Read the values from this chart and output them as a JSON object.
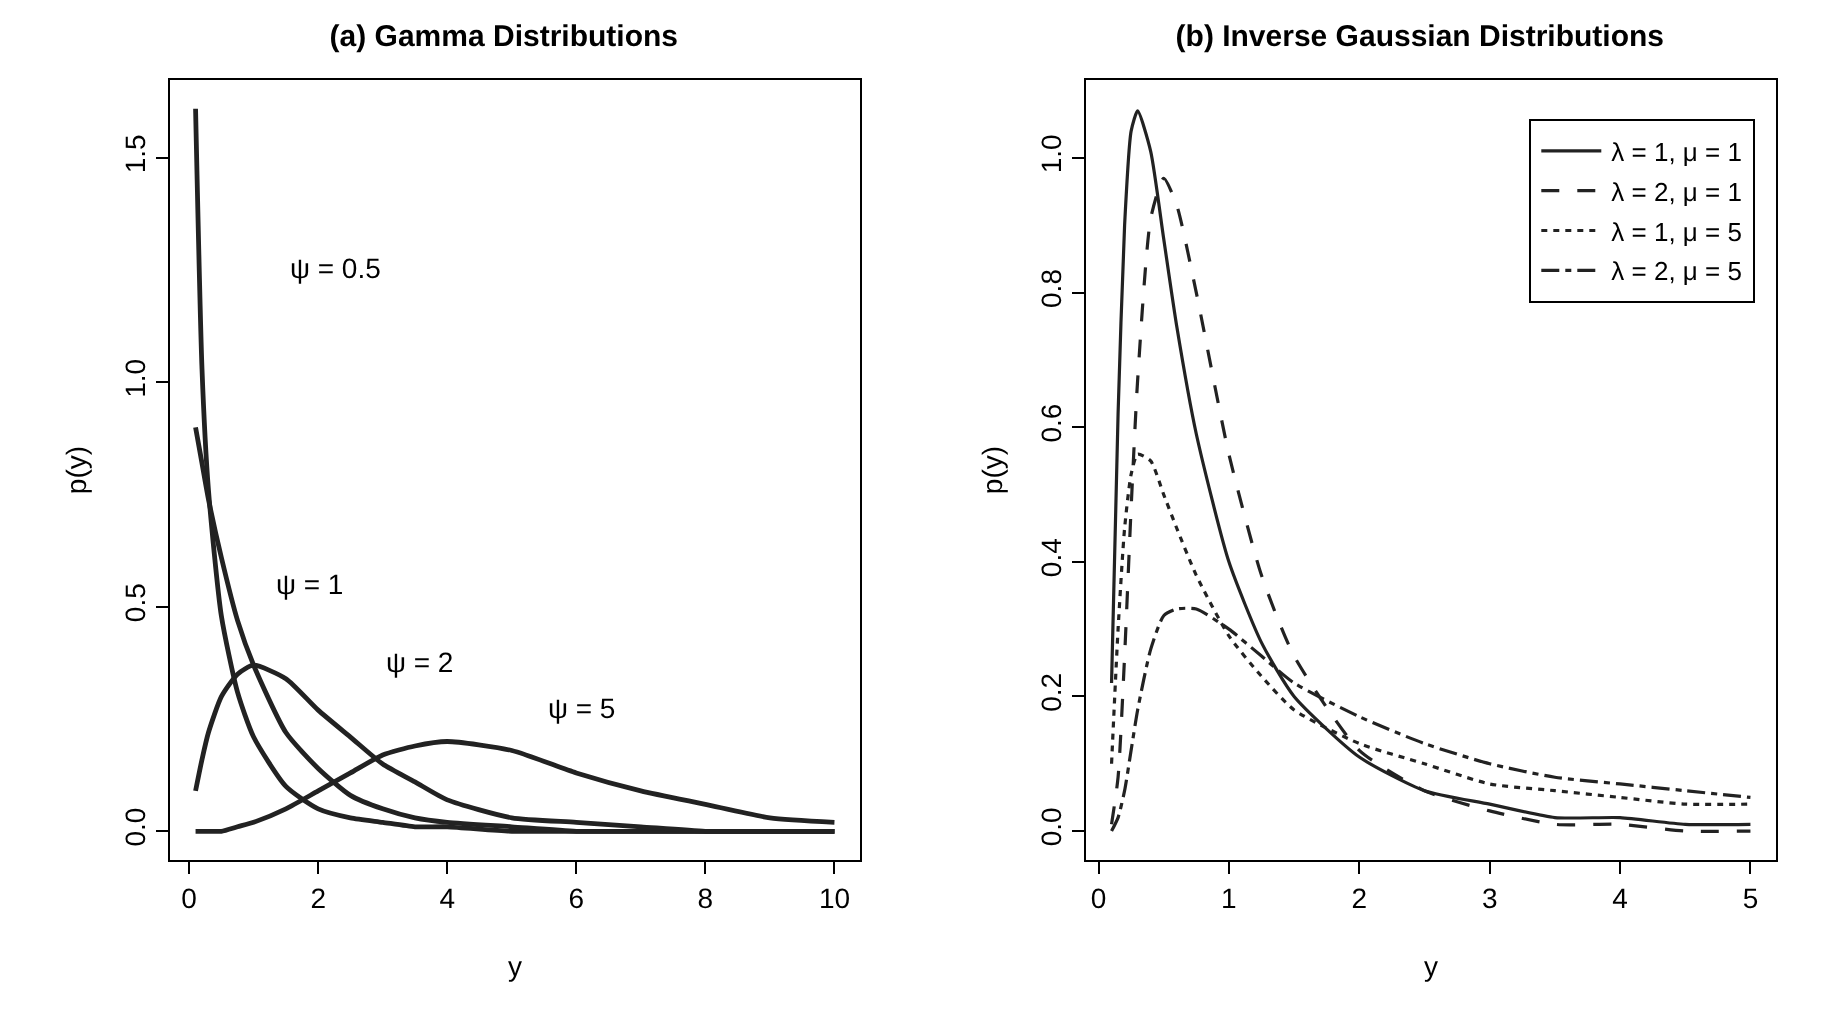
{
  "chart_data": [
    {
      "type": "line",
      "title": "(a) Gamma Distributions",
      "xlabel": "y",
      "ylabel": "p(y)",
      "x": [
        0.1,
        0.2,
        0.3,
        0.5,
        0.75,
        1,
        1.5,
        2,
        2.5,
        3,
        3.5,
        4,
        5,
        6,
        7,
        8,
        9,
        10
      ],
      "series": [
        {
          "color": "#222222",
          "values": [
            1.61,
            1.03,
            0.76,
            0.48,
            0.31,
            0.21,
            0.1,
            0.05,
            0.03,
            0.02,
            0.01,
            0.01,
            0,
            0,
            0,
            0,
            0,
            0
          ]
        },
        {
          "color": "#222222",
          "values": [
            0.9,
            0.82,
            0.74,
            0.61,
            0.47,
            0.37,
            0.22,
            0.14,
            0.08,
            0.05,
            0.03,
            0.02,
            0.01,
            0,
            0,
            0,
            0,
            0
          ]
        },
        {
          "color": "#222222",
          "values": [
            0.09,
            0.16,
            0.22,
            0.3,
            0.35,
            0.37,
            0.34,
            0.27,
            0.21,
            0.15,
            0.11,
            0.07,
            0.03,
            0.02,
            0.01,
            0,
            0,
            0
          ]
        },
        {
          "color": "#222222",
          "values": [
            0,
            0,
            0,
            0,
            0.01,
            0.02,
            0.05,
            0.09,
            0.13,
            0.17,
            0.19,
            0.2,
            0.18,
            0.13,
            0.09,
            0.06,
            0.03,
            0.02
          ]
        }
      ],
      "annotations": [
        "ψ = 0.5",
        "ψ = 1",
        "ψ = 2",
        "ψ = 5"
      ],
      "xlim": [
        -0.296,
        10.396
      ],
      "ylim": [
        -0.064,
        1.674
      ],
      "xticks": [
        0,
        2,
        4,
        6,
        8,
        10
      ],
      "yticks": [
        {
          "value": 0,
          "label": "0.0"
        },
        {
          "value": 0.5,
          "label": "0.5"
        },
        {
          "value": 1,
          "label": "1.0"
        },
        {
          "value": 1.5,
          "label": "1.5"
        }
      ],
      "grid": false,
      "legend": false,
      "line_style": "solid"
    },
    {
      "type": "line",
      "title": "(b) Inverse Gaussian Distributions",
      "xlabel": "y",
      "ylabel": "p(y)",
      "x": [
        0.1,
        0.15,
        0.2,
        0.25,
        0.3,
        0.4,
        0.5,
        0.6,
        0.75,
        1,
        1.25,
        1.5,
        2,
        2.5,
        3,
        3.5,
        4,
        4.5,
        5
      ],
      "series": [
        {
          "name": "λ = 1, μ = 1",
          "color": "#222222",
          "line_style": "solid",
          "values": [
            0.22,
            0.62,
            0.9,
            1.04,
            1.07,
            1.01,
            0.88,
            0.75,
            0.59,
            0.4,
            0.28,
            0.2,
            0.11,
            0.06,
            0.04,
            0.02,
            0.02,
            0.01,
            0.01
          ]
        },
        {
          "name": "λ = 2, μ = 1",
          "color": "#222222",
          "line_style": "dashed",
          "values": [
            0.01,
            0.08,
            0.26,
            0.48,
            0.67,
            0.91,
            0.97,
            0.93,
            0.8,
            0.56,
            0.38,
            0.26,
            0.12,
            0.06,
            0.03,
            0.01,
            0.01,
            0,
            0
          ]
        },
        {
          "name": "λ = 1, μ = 5",
          "color": "#222222",
          "line_style": "dotted",
          "values": [
            0.1,
            0.3,
            0.45,
            0.53,
            0.56,
            0.55,
            0.5,
            0.45,
            0.38,
            0.29,
            0.23,
            0.18,
            0.13,
            0.1,
            0.07,
            0.06,
            0.05,
            0.04,
            0.04
          ]
        },
        {
          "name": "λ = 2, μ = 5",
          "color": "#222222",
          "line_style": "dashdot",
          "values": [
            0,
            0.02,
            0.06,
            0.12,
            0.18,
            0.27,
            0.32,
            0.33,
            0.33,
            0.3,
            0.26,
            0.22,
            0.17,
            0.13,
            0.1,
            0.08,
            0.07,
            0.06,
            0.05
          ]
        }
      ],
      "xlim": [
        -0.096,
        5.196
      ],
      "ylim": [
        -0.043,
        1.116
      ],
      "xticks": [
        0,
        1,
        2,
        3,
        4,
        5
      ],
      "yticks": [
        {
          "value": 0,
          "label": "0.0"
        },
        {
          "value": 0.2,
          "label": "0.2"
        },
        {
          "value": 0.4,
          "label": "0.4"
        },
        {
          "value": 0.6,
          "label": "0.6"
        },
        {
          "value": 0.8,
          "label": "0.8"
        },
        {
          "value": 1,
          "label": "1.0"
        }
      ],
      "grid": false,
      "legend": "top right"
    }
  ]
}
